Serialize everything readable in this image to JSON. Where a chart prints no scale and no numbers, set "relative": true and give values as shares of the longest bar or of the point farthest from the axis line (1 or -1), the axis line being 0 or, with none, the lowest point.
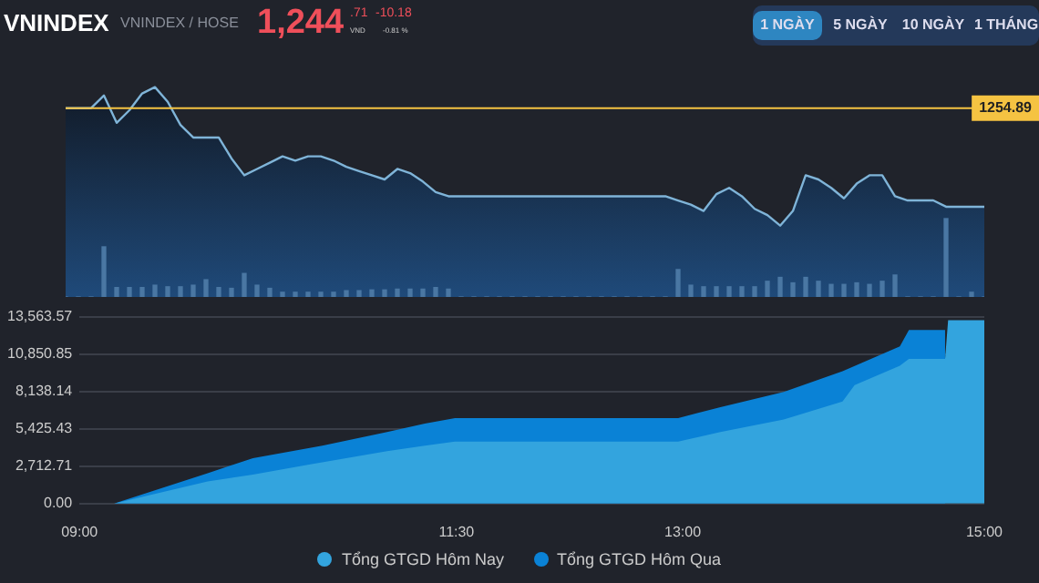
{
  "chart_data": [
    {
      "type": "area",
      "title": "VNINDEX",
      "subtitle": "VNINDEX / HOSE",
      "relative": true,
      "grid": false,
      "legend": false,
      "marker": "none",
      "annotations": [
        "1,244",
        ".71",
        "VND",
        "-10.18",
        "-0.81 %",
        "1 NGÀY",
        "5 NGÀY",
        "10 NGÀY",
        "1 THÁNG",
        "1254.89"
      ],
      "ref_lines": [
        {
          "axis": "y",
          "value": 0.9,
          "color": "#f5c342"
        }
      ],
      "categories": [
        null,
        null,
        null,
        null,
        null,
        null,
        null,
        null,
        null,
        null,
        null,
        null,
        null,
        null,
        null,
        null,
        null,
        null,
        null,
        null,
        null,
        null,
        null,
        null,
        null,
        null,
        null,
        null,
        null,
        null,
        null,
        null,
        null,
        null,
        null,
        null,
        null,
        null,
        null,
        null,
        null,
        null,
        null,
        null,
        null,
        null,
        null,
        null,
        null,
        null,
        null,
        null,
        null,
        null,
        null,
        null,
        null,
        null,
        null,
        null,
        null,
        null,
        null,
        null,
        null,
        null,
        null,
        null,
        null,
        null,
        null,
        null,
        null
      ],
      "series": [
        {
          "color": "#7fb4d8",
          "values": [
            0.9,
            0.9,
            0.9,
            0.96,
            0.83,
            0.89,
            0.97,
            1.0,
            0.93,
            0.82,
            0.76,
            0.76,
            0.76,
            0.66,
            0.58,
            0.61,
            0.64,
            0.67,
            0.65,
            0.67,
            0.67,
            0.65,
            0.62,
            0.6,
            0.58,
            0.56,
            0.61,
            0.59,
            0.55,
            0.5,
            0.48,
            0.48,
            0.48,
            0.48,
            0.48,
            0.48,
            0.48,
            0.48,
            0.48,
            0.48,
            0.48,
            0.48,
            0.48,
            0.48,
            0.48,
            0.48,
            0.48,
            0.48,
            0.46,
            0.44,
            0.41,
            0.49,
            0.52,
            0.48,
            0.42,
            0.39,
            0.34,
            0.41,
            0.58,
            0.56,
            0.52,
            0.47,
            0.54,
            0.58,
            0.58,
            0.48,
            0.46,
            0.46,
            0.46,
            0.43,
            0.43,
            0.43,
            0.43
          ]
        }
      ]
    },
    {
      "type": "bar",
      "relative": true,
      "grid": false,
      "legend": false,
      "categories": [
        null,
        null,
        null,
        null,
        null,
        null,
        null,
        null,
        null,
        null,
        null,
        null,
        null,
        null,
        null,
        null,
        null,
        null,
        null,
        null,
        null,
        null,
        null,
        null,
        null,
        null,
        null,
        null,
        null,
        null,
        null,
        null,
        null,
        null,
        null,
        null,
        null,
        null,
        null,
        null,
        null,
        null,
        null,
        null,
        null,
        null,
        null,
        null,
        null,
        null,
        null,
        null,
        null,
        null,
        null,
        null,
        null,
        null,
        null,
        null,
        null,
        null,
        null,
        null,
        null,
        null,
        null,
        null,
        null,
        null,
        null,
        null,
        null
      ],
      "series": [
        {
          "color": "#4a77a3",
          "values": [
            0,
            0,
            0,
            0.64,
            0.12,
            0.12,
            0.12,
            0.15,
            0.13,
            0.13,
            0.15,
            0.22,
            0.12,
            0.11,
            0.3,
            0.15,
            0.11,
            0.06,
            0.06,
            0.06,
            0.06,
            0.06,
            0.08,
            0.08,
            0.09,
            0.09,
            0.1,
            0.1,
            0.1,
            0.12,
            0.1,
            0,
            0,
            0,
            0,
            0,
            0,
            0,
            0,
            0,
            0,
            0,
            0,
            0,
            0,
            0,
            0,
            0,
            0.35,
            0.15,
            0.13,
            0.13,
            0.13,
            0.13,
            0.13,
            0.2,
            0.25,
            0.18,
            0.25,
            0.2,
            0.16,
            0.16,
            0.18,
            0.16,
            0.2,
            0.28,
            0,
            0,
            0,
            1.0,
            0,
            0.06,
            0
          ]
        }
      ]
    },
    {
      "type": "area",
      "xlim": [
        9,
        15
      ],
      "xticks": [
        {
          "value": 9,
          "label": "09:00"
        },
        {
          "value": 11.5,
          "label": "11:30"
        },
        {
          "value": 13,
          "label": "13:00"
        },
        {
          "value": 15,
          "label": "15:00"
        }
      ],
      "ylim": [
        0,
        13563.57
      ],
      "yticks": [
        {
          "value": 0,
          "label": "0.00"
        },
        {
          "value": 2712.71,
          "label": "2,712.71"
        },
        {
          "value": 5425.43,
          "label": "5,425.43"
        },
        {
          "value": 8138.14,
          "label": "8,138.14"
        },
        {
          "value": 10850.85,
          "label": "10,850.85"
        },
        {
          "value": 13563.57,
          "label": "13,563.57"
        }
      ],
      "grid": "y",
      "legend": "bottom",
      "marker": "none",
      "series": [
        {
          "name": "Tổng GTGD Hôm Nay",
          "color": "#33a4de",
          "x": [
            9.0,
            9.23,
            9.85,
            10.15,
            10.61,
            11.04,
            11.29,
            11.49,
            12.97,
            13.25,
            13.67,
            14.06,
            14.14,
            14.44,
            14.5,
            14.74,
            14.76,
            15.0
          ],
          "values": [
            0,
            0,
            1600,
            2100,
            3000,
            3800,
            4200,
            4500,
            4500,
            5200,
            6100,
            7400,
            8600,
            10000,
            10500,
            10500,
            13300,
            13300
          ]
        },
        {
          "name": "Tổng GTGD Hôm Qua",
          "color": "#0a82d6",
          "x": [
            9.0,
            9.23,
            9.85,
            10.15,
            10.61,
            11.04,
            11.29,
            11.49,
            12.97,
            13.25,
            13.67,
            14.06,
            14.44,
            14.5,
            14.74
          ],
          "values": [
            0,
            0,
            2200,
            3300,
            4200,
            5200,
            5800,
            6200,
            6200,
            7000,
            8100,
            9600,
            11400,
            12600,
            12600
          ]
        }
      ]
    }
  ]
}
